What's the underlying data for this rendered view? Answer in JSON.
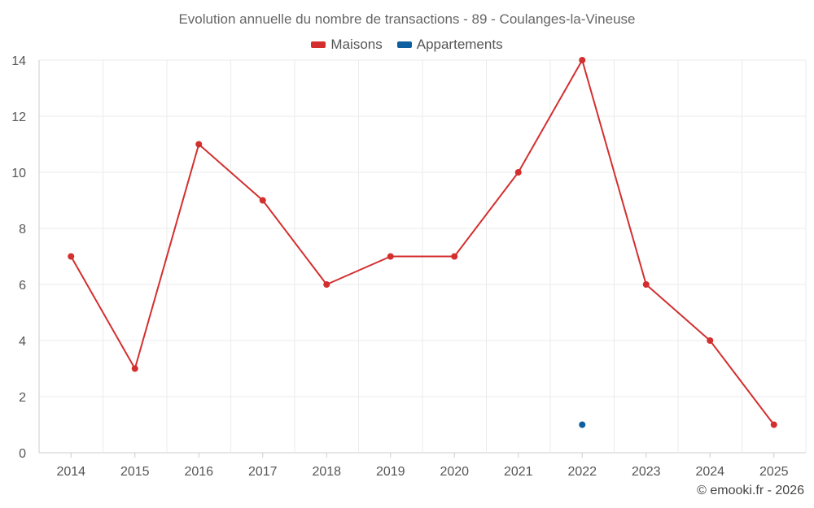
{
  "chart_data": {
    "type": "line",
    "title": "Evolution annuelle du nombre de transactions - 89 - Coulanges-la-Vineuse",
    "categories": [
      "2014",
      "2015",
      "2016",
      "2017",
      "2018",
      "2019",
      "2020",
      "2021",
      "2022",
      "2023",
      "2024",
      "2025"
    ],
    "series": [
      {
        "name": "Maisons",
        "color": "#d32f2f",
        "values": [
          7,
          3,
          11,
          9,
          6,
          7,
          7,
          10,
          14,
          6,
          4,
          1
        ]
      },
      {
        "name": "Appartements",
        "color": "#0d5fa0",
        "values": [
          null,
          null,
          null,
          null,
          null,
          null,
          null,
          null,
          1,
          null,
          null,
          null
        ]
      }
    ],
    "ylim": [
      0,
      14
    ],
    "yticks": [
      0,
      2,
      4,
      6,
      8,
      10,
      12,
      14
    ],
    "grid": true,
    "legend_position": "top-center",
    "credit": "© emooki.fr - 2026"
  }
}
